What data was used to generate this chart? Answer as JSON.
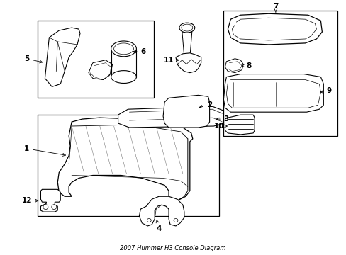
{
  "title": "2007 Hummer H3 Console Diagram",
  "bg_color": "#ffffff",
  "line_color": "#000000",
  "fig_width": 4.89,
  "fig_height": 3.6,
  "dpi": 100
}
